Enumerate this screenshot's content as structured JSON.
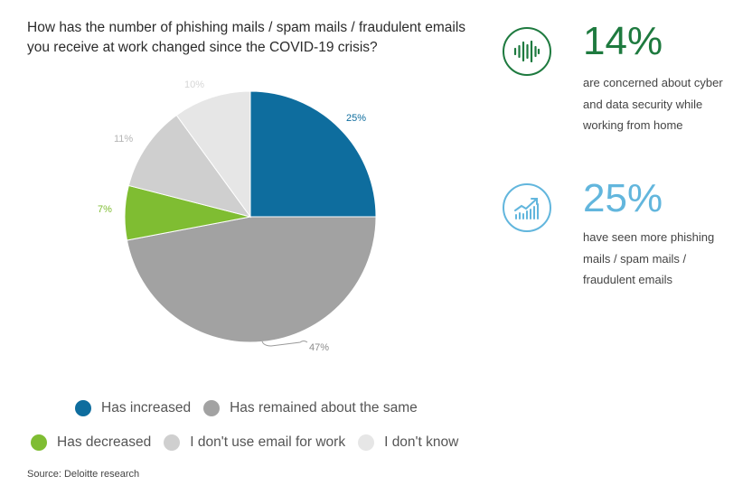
{
  "title": "How has the number of phishing mails / spam mails / fraudulent emails you receive at work changed since the COVID-19 crisis?",
  "chart_data": {
    "type": "pie",
    "categories": [
      "Has increased",
      "Has remained about the same",
      "Has decreased",
      "I don't use email for work",
      "I don't know"
    ],
    "values": [
      25,
      47,
      7,
      11,
      10
    ],
    "labels": [
      "25%",
      "47%",
      "7%",
      "11%",
      "10%"
    ],
    "colors": [
      "#0e6d9e",
      "#a2a2a2",
      "#7fbd32",
      "#cfcfcf",
      "#e6e6e6"
    ],
    "label_colors": [
      "#0e6d9e",
      "#8c8c8c",
      "#7fbd32",
      "#b5b5b5",
      "#d6d6d6"
    ],
    "legend_placement": "bottom"
  },
  "legend": {
    "items": [
      {
        "label": "Has increased",
        "color": "#0e6d9e"
      },
      {
        "label": "Has remained about the same",
        "color": "#a2a2a2"
      },
      {
        "label": "Has decreased",
        "color": "#7fbd32"
      },
      {
        "label": "I don't use email for work",
        "color": "#cfcfcf"
      },
      {
        "label": "I don't know",
        "color": "#e6e6e6"
      }
    ]
  },
  "stats": [
    {
      "value": "14%",
      "text": "are concerned about cyber and data security while working from home",
      "color": "#1e7a3f",
      "icon": "sound-wave-icon"
    },
    {
      "value": "25%",
      "text": "have seen more phishing mails / spam mails / fraudulent emails",
      "color": "#62b6dd",
      "icon": "growth-chart-icon"
    }
  ],
  "source": "Source: Deloitte research"
}
